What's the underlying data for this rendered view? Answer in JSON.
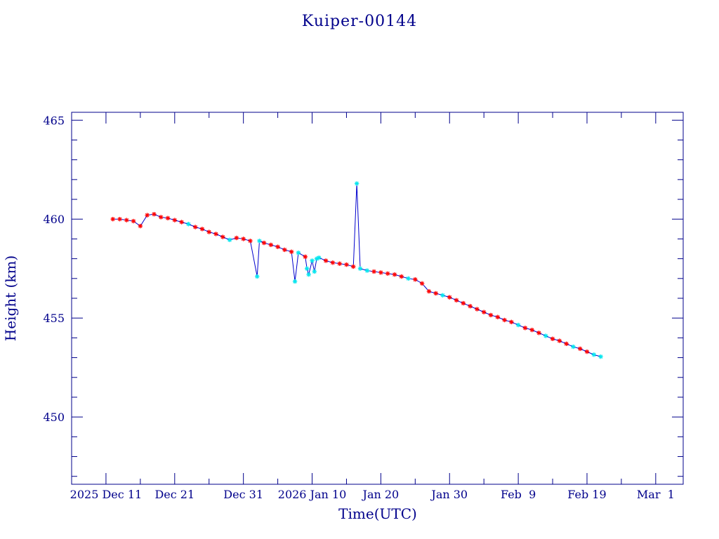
{
  "chart_data": {
    "type": "line",
    "title": "Kuiper-00144",
    "xlabel": "Time(UTC)",
    "ylabel": "Height (km)",
    "xlim": [
      "2025-12-06",
      "2026-03-05"
    ],
    "ylim": [
      446.6,
      465.4
    ],
    "x_tick_labels": [
      {
        "date": "2025-12-11",
        "label": "2025 Dec 11"
      },
      {
        "date": "2025-12-21",
        "label": "Dec 21"
      },
      {
        "date": "2025-12-31",
        "label": "Dec 31"
      },
      {
        "date": "2026-01-10",
        "label": "2026 Jan 10"
      },
      {
        "date": "2026-01-20",
        "label": "Jan 20"
      },
      {
        "date": "2026-01-30",
        "label": "Jan 30"
      },
      {
        "date": "2026-02-09",
        "label": "Feb  9"
      },
      {
        "date": "2026-02-19",
        "label": "Feb 19"
      },
      {
        "date": "2026-03-01",
        "label": "Mar  1"
      }
    ],
    "y_ticks": [
      450,
      455,
      460,
      465
    ],
    "y_minor_step": 1,
    "x_minor_step_days": 5,
    "grid": false,
    "legend": "none",
    "colors": {
      "axis": "#00008b",
      "line": "#0000cd",
      "marker_primary": "#ff0000",
      "marker_secondary": "#00e5ee"
    },
    "series": [
      {
        "marker": "star",
        "points": [
          {
            "x": "2025-12-12",
            "y": 460.0,
            "c": "r"
          },
          {
            "x": "2025-12-13",
            "y": 460.0,
            "c": "r"
          },
          {
            "x": "2025-12-14",
            "y": 459.95,
            "c": "r"
          },
          {
            "x": "2025-12-15",
            "y": 459.9,
            "c": "r"
          },
          {
            "x": "2025-12-16",
            "y": 459.65,
            "c": "r"
          },
          {
            "x": "2025-12-17",
            "y": 460.2,
            "c": "r"
          },
          {
            "x": "2025-12-18",
            "y": 460.25,
            "c": "r"
          },
          {
            "x": "2025-12-19",
            "y": 460.1,
            "c": "r"
          },
          {
            "x": "2025-12-20",
            "y": 460.05,
            "c": "r"
          },
          {
            "x": "2025-12-21",
            "y": 459.95,
            "c": "r"
          },
          {
            "x": "2025-12-22",
            "y": 459.85,
            "c": "r"
          },
          {
            "x": "2025-12-23",
            "y": 459.75,
            "c": "c"
          },
          {
            "x": "2025-12-24",
            "y": 459.6,
            "c": "r"
          },
          {
            "x": "2025-12-25",
            "y": 459.5,
            "c": "r"
          },
          {
            "x": "2025-12-26",
            "y": 459.35,
            "c": "r"
          },
          {
            "x": "2025-12-27",
            "y": 459.25,
            "c": "r"
          },
          {
            "x": "2025-12-28",
            "y": 459.1,
            "c": "r"
          },
          {
            "x": "2025-12-29",
            "y": 458.95,
            "c": "c"
          },
          {
            "x": "2025-12-30",
            "y": 459.05,
            "c": "r"
          },
          {
            "x": "2025-12-31",
            "y": 459.0,
            "c": "r"
          },
          {
            "x": "2026-01-01",
            "y": 458.9,
            "c": "r"
          },
          {
            "x": "2026-01-02",
            "y": 457.1,
            "c": "c"
          },
          {
            "x": "2026-01-02T08:00",
            "y": 458.9,
            "c": "c"
          },
          {
            "x": "2026-01-03",
            "y": 458.8,
            "c": "r"
          },
          {
            "x": "2026-01-04",
            "y": 458.7,
            "c": "r"
          },
          {
            "x": "2026-01-05",
            "y": 458.6,
            "c": "r"
          },
          {
            "x": "2026-01-06",
            "y": 458.45,
            "c": "r"
          },
          {
            "x": "2026-01-07",
            "y": 458.35,
            "c": "r"
          },
          {
            "x": "2026-01-07T12:00",
            "y": 456.85,
            "c": "c"
          },
          {
            "x": "2026-01-08",
            "y": 458.3,
            "c": "c"
          },
          {
            "x": "2026-01-09",
            "y": 458.1,
            "c": "r"
          },
          {
            "x": "2026-01-09T06:00",
            "y": 457.5,
            "c": "c"
          },
          {
            "x": "2026-01-09T12:00",
            "y": 457.2,
            "c": "c"
          },
          {
            "x": "2026-01-10",
            "y": 457.9,
            "c": "c"
          },
          {
            "x": "2026-01-10T08:00",
            "y": 457.35,
            "c": "c"
          },
          {
            "x": "2026-01-10T16:00",
            "y": 458.0,
            "c": "c"
          },
          {
            "x": "2026-01-11",
            "y": 458.05,
            "c": "c"
          },
          {
            "x": "2026-01-12",
            "y": 457.9,
            "c": "r"
          },
          {
            "x": "2026-01-13",
            "y": 457.8,
            "c": "r"
          },
          {
            "x": "2026-01-14",
            "y": 457.75,
            "c": "r"
          },
          {
            "x": "2026-01-15",
            "y": 457.7,
            "c": "r"
          },
          {
            "x": "2026-01-16",
            "y": 457.6,
            "c": "r"
          },
          {
            "x": "2026-01-16T12:00",
            "y": 461.8,
            "c": "c"
          },
          {
            "x": "2026-01-17",
            "y": 457.5,
            "c": "c"
          },
          {
            "x": "2026-01-18",
            "y": 457.4,
            "c": "c"
          },
          {
            "x": "2026-01-19",
            "y": 457.35,
            "c": "r"
          },
          {
            "x": "2026-01-20",
            "y": 457.3,
            "c": "r"
          },
          {
            "x": "2026-01-21",
            "y": 457.25,
            "c": "r"
          },
          {
            "x": "2026-01-22",
            "y": 457.2,
            "c": "r"
          },
          {
            "x": "2026-01-23",
            "y": 457.1,
            "c": "r"
          },
          {
            "x": "2026-01-24",
            "y": 457.0,
            "c": "c"
          },
          {
            "x": "2026-01-25",
            "y": 456.95,
            "c": "r"
          },
          {
            "x": "2026-01-26",
            "y": 456.75,
            "c": "r"
          },
          {
            "x": "2026-01-27",
            "y": 456.35,
            "c": "r"
          },
          {
            "x": "2026-01-28",
            "y": 456.25,
            "c": "r"
          },
          {
            "x": "2026-01-29",
            "y": 456.15,
            "c": "c"
          },
          {
            "x": "2026-01-30",
            "y": 456.05,
            "c": "r"
          },
          {
            "x": "2026-01-31",
            "y": 455.9,
            "c": "r"
          },
          {
            "x": "2026-02-01",
            "y": 455.75,
            "c": "r"
          },
          {
            "x": "2026-02-02",
            "y": 455.6,
            "c": "r"
          },
          {
            "x": "2026-02-03",
            "y": 455.45,
            "c": "r"
          },
          {
            "x": "2026-02-04",
            "y": 455.3,
            "c": "r"
          },
          {
            "x": "2026-02-05",
            "y": 455.15,
            "c": "r"
          },
          {
            "x": "2026-02-06",
            "y": 455.05,
            "c": "r"
          },
          {
            "x": "2026-02-07",
            "y": 454.9,
            "c": "r"
          },
          {
            "x": "2026-02-08",
            "y": 454.8,
            "c": "r"
          },
          {
            "x": "2026-02-09",
            "y": 454.65,
            "c": "c"
          },
          {
            "x": "2026-02-10",
            "y": 454.5,
            "c": "r"
          },
          {
            "x": "2026-02-11",
            "y": 454.4,
            "c": "r"
          },
          {
            "x": "2026-02-12",
            "y": 454.25,
            "c": "r"
          },
          {
            "x": "2026-02-13",
            "y": 454.1,
            "c": "c"
          },
          {
            "x": "2026-02-14",
            "y": 453.95,
            "c": "r"
          },
          {
            "x": "2026-02-15",
            "y": 453.85,
            "c": "r"
          },
          {
            "x": "2026-02-16",
            "y": 453.7,
            "c": "r"
          },
          {
            "x": "2026-02-17",
            "y": 453.55,
            "c": "c"
          },
          {
            "x": "2026-02-18",
            "y": 453.45,
            "c": "r"
          },
          {
            "x": "2026-02-19",
            "y": 453.3,
            "c": "r"
          },
          {
            "x": "2026-02-20",
            "y": 453.15,
            "c": "c"
          },
          {
            "x": "2026-02-21",
            "y": 453.05,
            "c": "c"
          }
        ]
      }
    ]
  }
}
